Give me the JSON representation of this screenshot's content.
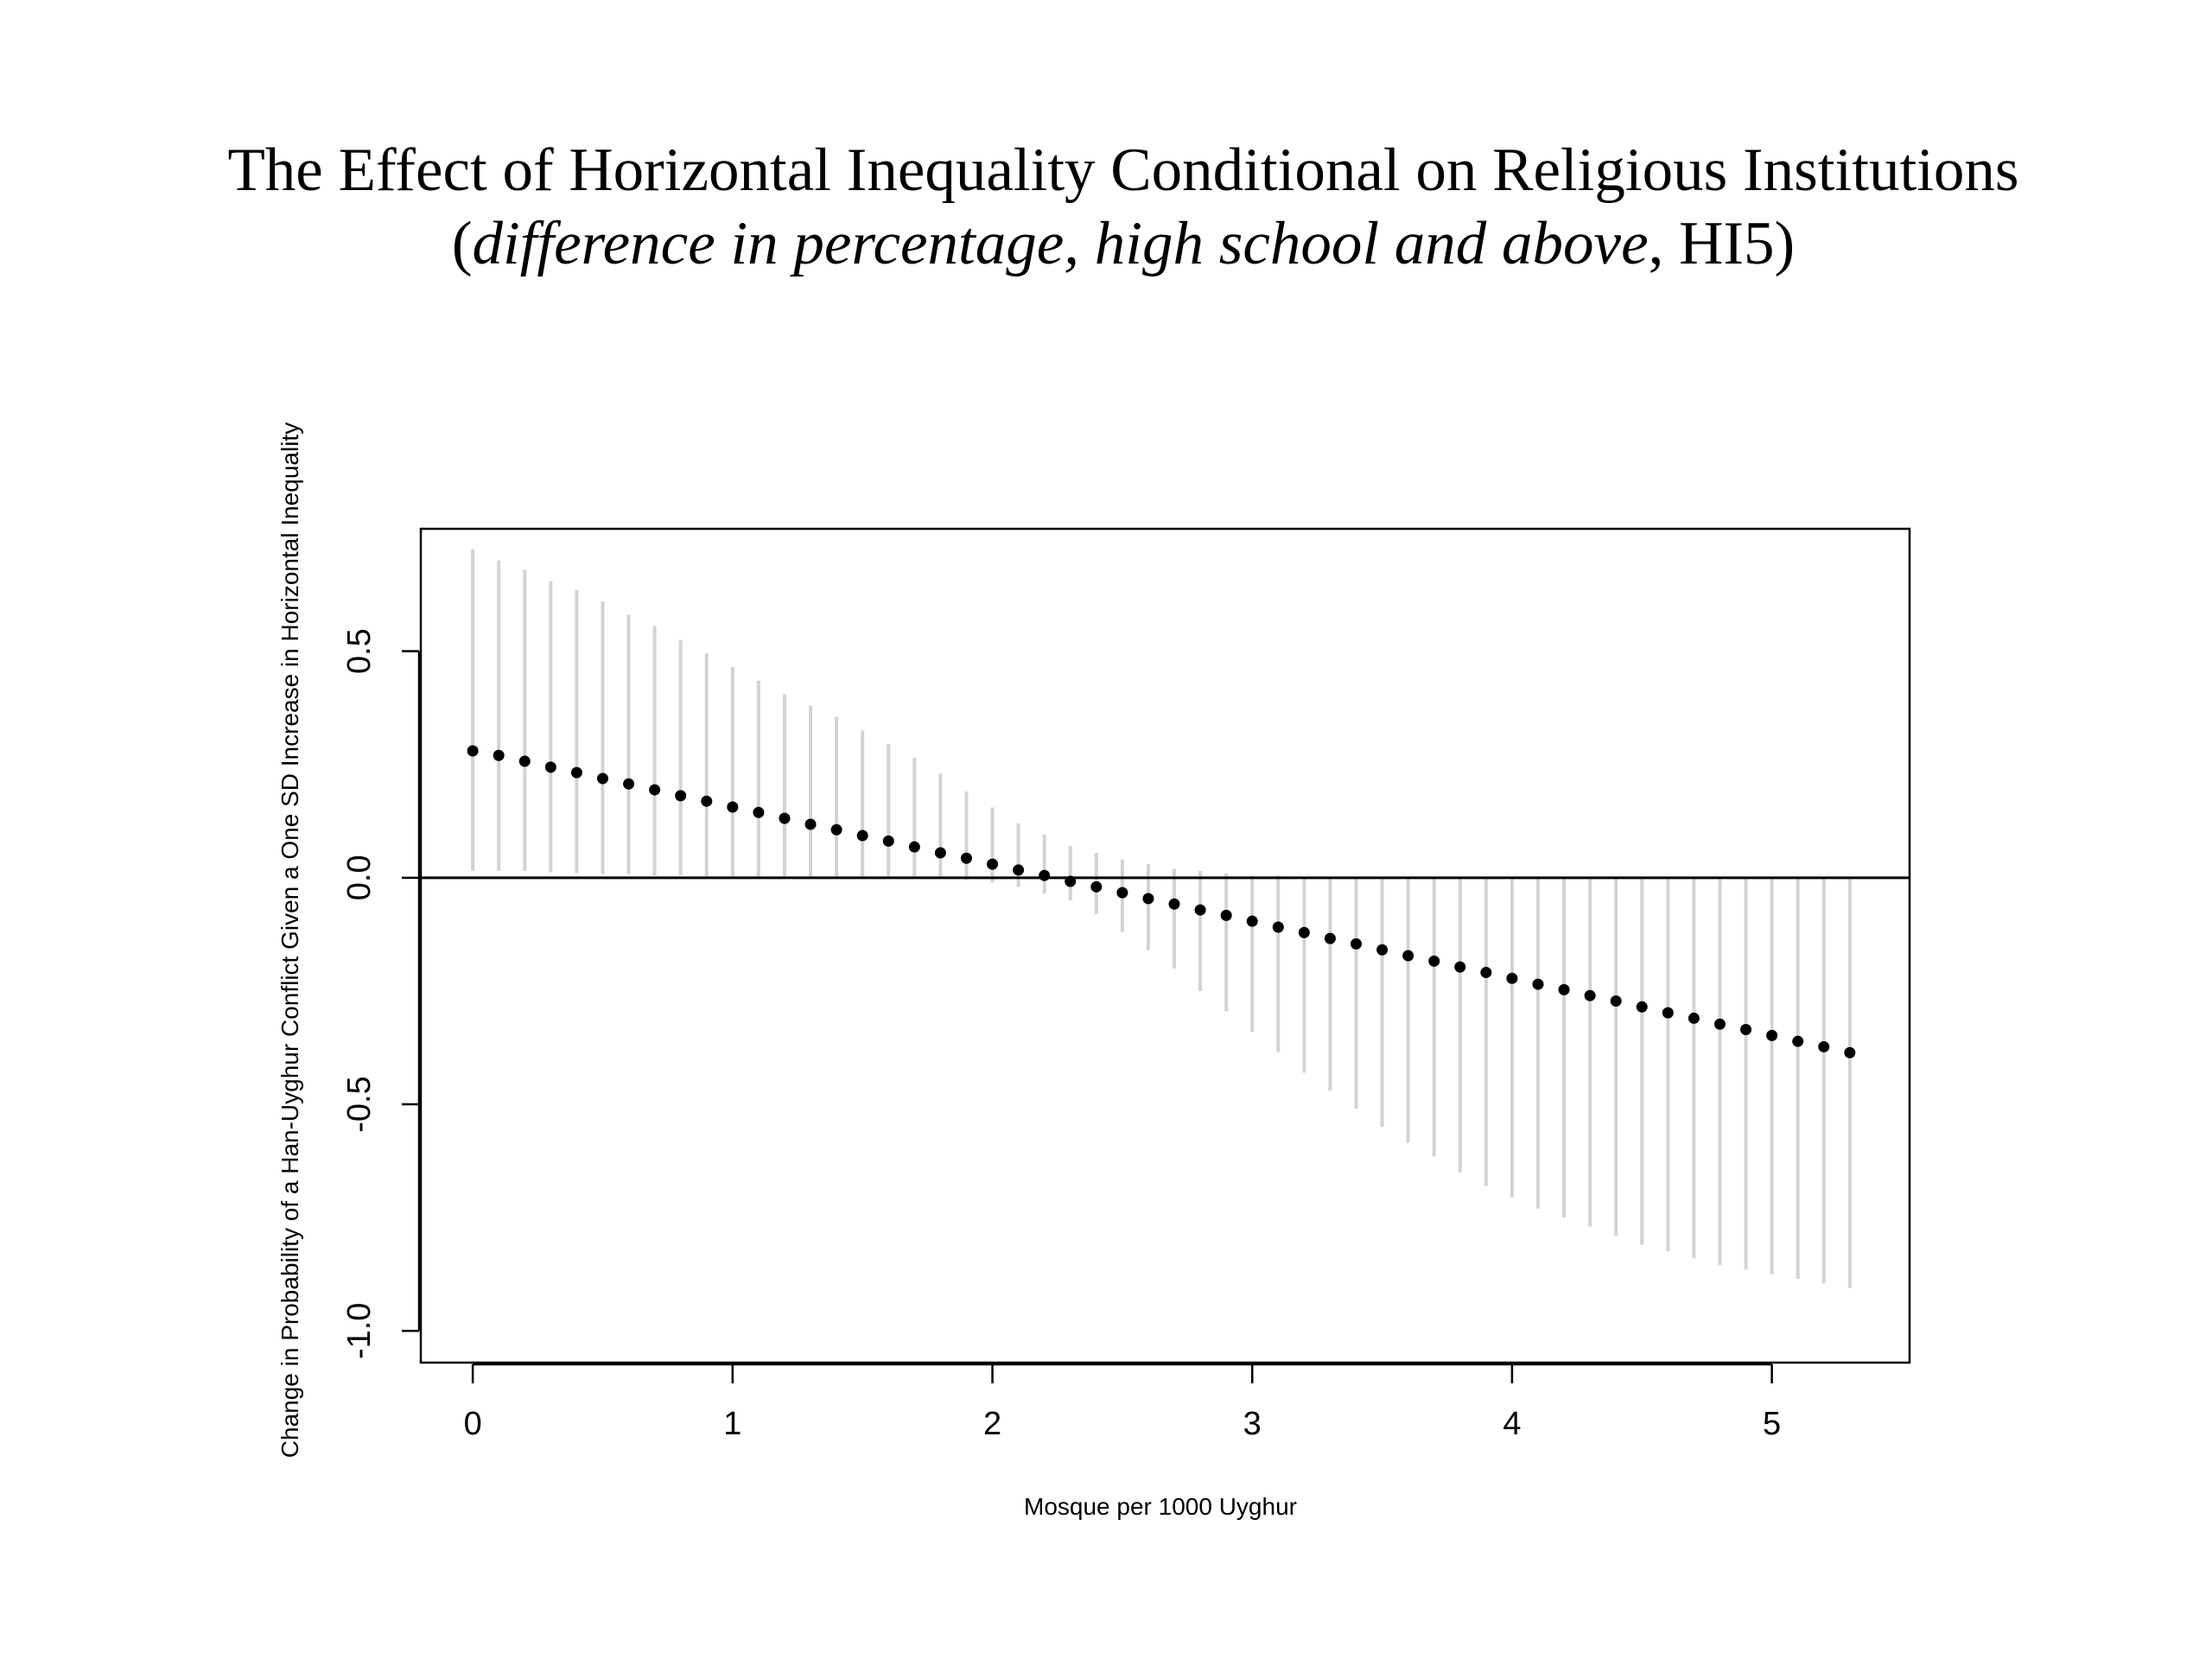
{
  "chart_data": {
    "type": "scatter",
    "title": "The Effect of Horizontal Inequality Conditional on Religious Institutions",
    "subtitle_parts": {
      "open": "(",
      "italic": "difference in percentage, high school and above",
      "rest": ", HI5)"
    },
    "xlabel": "Mosque per 1000 Uyghur",
    "ylabel": "Change in Probability of a Han-Uyghur Conflict Given a One SD Increase in Horizontal Inequality",
    "xlim": [
      -0.2,
      5.53
    ],
    "ylim": [
      -1.07,
      0.77
    ],
    "xticks": [
      0,
      1,
      2,
      3,
      4,
      5
    ],
    "yticks": [
      -1.0,
      -0.5,
      0.0,
      0.5
    ],
    "xtick_labels": [
      "0",
      "1",
      "2",
      "3",
      "4",
      "5"
    ],
    "ytick_labels": [
      "-1.0",
      "-0.5",
      "0.0",
      "0.5"
    ],
    "reference_line_y": 0,
    "grid": false,
    "point_color": "#000000",
    "interval_color": "#d3d3d3",
    "x": [
      0,
      0.1,
      0.2,
      0.3,
      0.4,
      0.5,
      0.6,
      0.7,
      0.8,
      0.9,
      1.0,
      1.1,
      1.2,
      1.3,
      1.4,
      1.5,
      1.6,
      1.7,
      1.8,
      1.9,
      2.0,
      2.1,
      2.2,
      2.3,
      2.4,
      2.5,
      2.6,
      2.7,
      2.8,
      2.9,
      3.0,
      3.1,
      3.2,
      3.3,
      3.4,
      3.5,
      3.6,
      3.7,
      3.8,
      3.9,
      4.0,
      4.1,
      4.2,
      4.3,
      4.4,
      4.5,
      4.6,
      4.7,
      4.8,
      4.9,
      5.0,
      5.1,
      5.2,
      5.3
    ],
    "estimate": [
      0.28,
      0.27,
      0.257,
      0.244,
      0.232,
      0.219,
      0.207,
      0.194,
      0.181,
      0.169,
      0.156,
      0.144,
      0.131,
      0.118,
      0.106,
      0.093,
      0.081,
      0.068,
      0.055,
      0.043,
      0.03,
      0.017,
      0.005,
      -0.008,
      -0.02,
      -0.033,
      -0.046,
      -0.058,
      -0.071,
      -0.083,
      -0.096,
      -0.109,
      -0.121,
      -0.134,
      -0.146,
      -0.159,
      -0.172,
      -0.184,
      -0.197,
      -0.209,
      -0.222,
      -0.235,
      -0.247,
      -0.26,
      -0.272,
      -0.285,
      -0.298,
      -0.31,
      -0.323,
      -0.335,
      -0.348,
      -0.361,
      -0.373,
      -0.386
    ],
    "upper": [
      0.725,
      0.7,
      0.68,
      0.655,
      0.635,
      0.61,
      0.58,
      0.555,
      0.525,
      0.495,
      0.465,
      0.435,
      0.405,
      0.38,
      0.355,
      0.325,
      0.295,
      0.265,
      0.23,
      0.19,
      0.155,
      0.12,
      0.095,
      0.07,
      0.055,
      0.04,
      0.03,
      0.02,
      0.015,
      0.01,
      0.005,
      0.005,
      0.0,
      0.0,
      0.0,
      0.0,
      0.0,
      0.0,
      0.0,
      0.0,
      0.0,
      0.0,
      0.0,
      0.0,
      0.0,
      0.0,
      0.0,
      0.0,
      0.0,
      0.0,
      0.0,
      0.0,
      0.0,
      0.0
    ],
    "lower": [
      0.015,
      0.015,
      0.015,
      0.012,
      0.01,
      0.008,
      0.008,
      0.005,
      0.005,
      0.003,
      0.003,
      0.0,
      0.0,
      0.0,
      0.0,
      0.0,
      0.0,
      0.0,
      0.0,
      -0.005,
      -0.01,
      -0.02,
      -0.035,
      -0.05,
      -0.08,
      -0.12,
      -0.16,
      -0.2,
      -0.25,
      -0.295,
      -0.34,
      -0.385,
      -0.43,
      -0.47,
      -0.51,
      -0.55,
      -0.585,
      -0.615,
      -0.65,
      -0.68,
      -0.705,
      -0.73,
      -0.75,
      -0.77,
      -0.79,
      -0.81,
      -0.825,
      -0.84,
      -0.855,
      -0.865,
      -0.875,
      -0.885,
      -0.895,
      -0.905
    ]
  }
}
